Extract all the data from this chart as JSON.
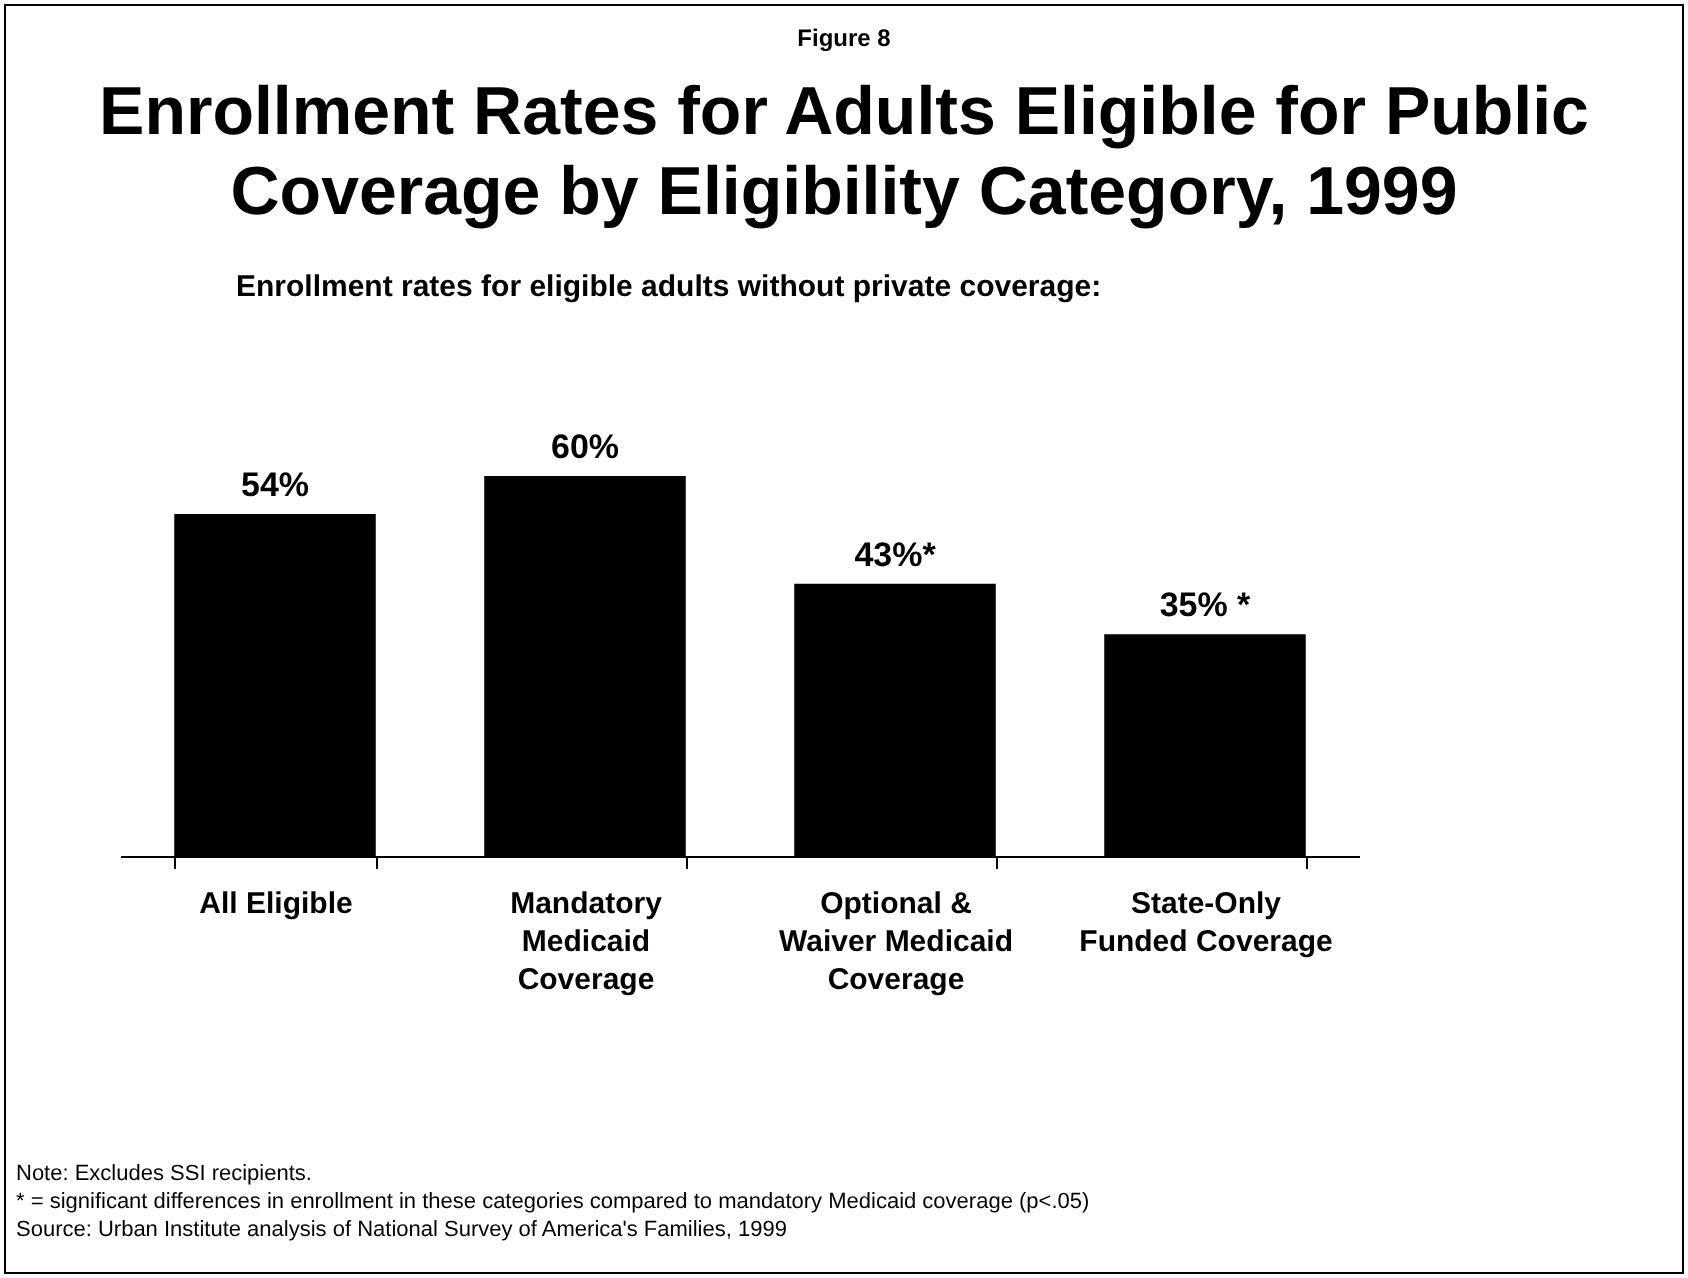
{
  "chart_data": {
    "type": "bar",
    "title": "Enrollment Rates for Adults Eligible for Public Coverage by Eligibility Category, 1999",
    "subtitle": "Enrollment rates for eligible adults without private coverage:",
    "categories": [
      "All Eligible",
      "Mandatory Medicaid Coverage",
      "Optional & Waiver Medicaid Coverage",
      "State-Only Funded Coverage"
    ],
    "values": [
      54,
      60,
      43,
      35
    ],
    "color": "#000000",
    "value_labels": [
      "54%",
      "60%",
      "43%*",
      "35% *"
    ],
    "annotations": [
      "Figure 8",
      "Note: Excludes SSI recipients.",
      "* = significant differences in enrollment in these categories compared to mandatory Medicaid coverage (p<.05)",
      "Source: Urban Institute analysis of National Survey of America's Families, 1999"
    ],
    "grid": false
  }
}
